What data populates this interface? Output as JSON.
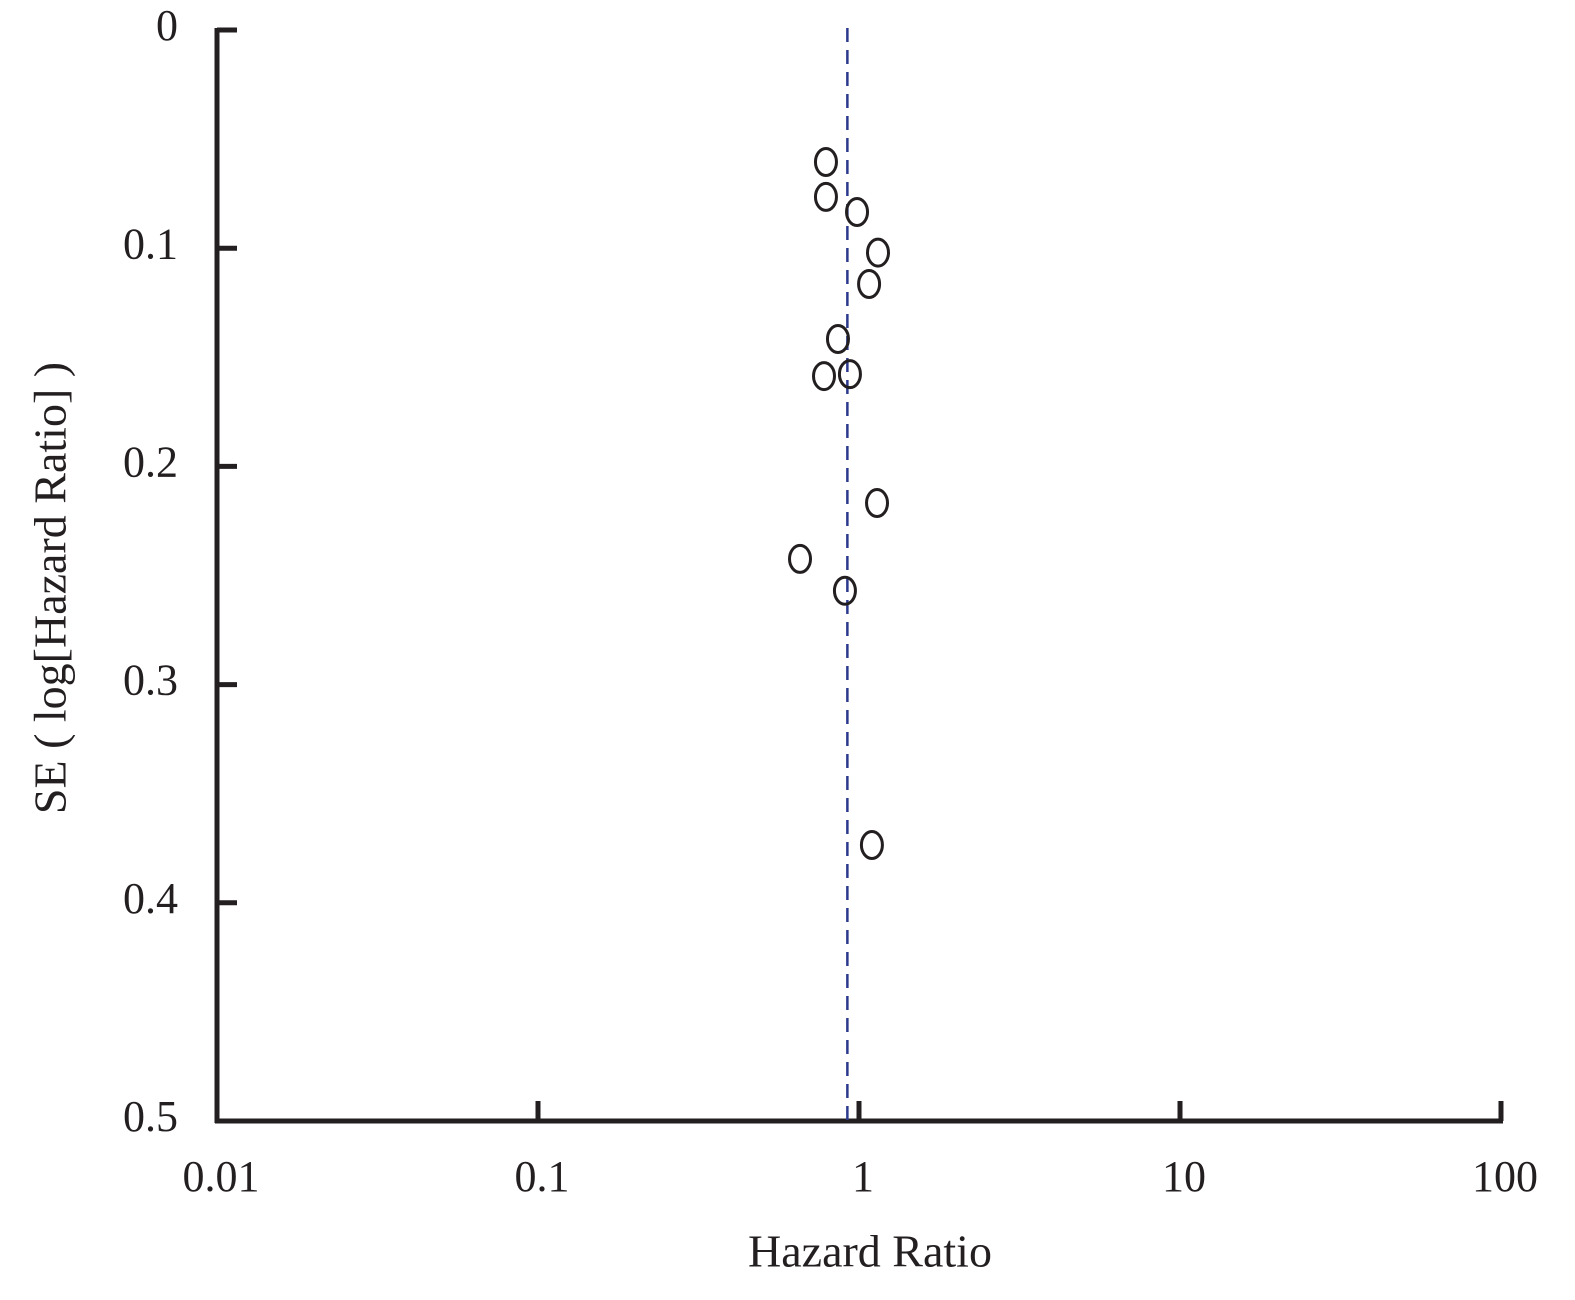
{
  "chart_data": {
    "type": "scatter",
    "x_label": "Hazard Ratio",
    "y_label": "SE ( log[Hazard Ratio] )",
    "xscale": "log",
    "xlim": [
      0.01,
      100
    ],
    "xticks": [
      0.01,
      0.1,
      1,
      10,
      100
    ],
    "ylim": [
      0.5,
      0
    ],
    "yticks": [
      0,
      0.1,
      0.2,
      0.3,
      0.4,
      0.5
    ],
    "reference_x": 0.92,
    "reference_color": "#2b3a8c",
    "color": "#231f20",
    "x": [
      0.789,
      0.789,
      0.986,
      1.146,
      1.075,
      0.86,
      0.778,
      0.937,
      1.138,
      0.655,
      0.904,
      1.097
    ],
    "values": [
      0.0605,
      0.0765,
      0.0834,
      0.102,
      0.1164,
      0.1416,
      0.1586,
      0.1577,
      0.2168,
      0.2424,
      0.257,
      0.3735
    ]
  }
}
